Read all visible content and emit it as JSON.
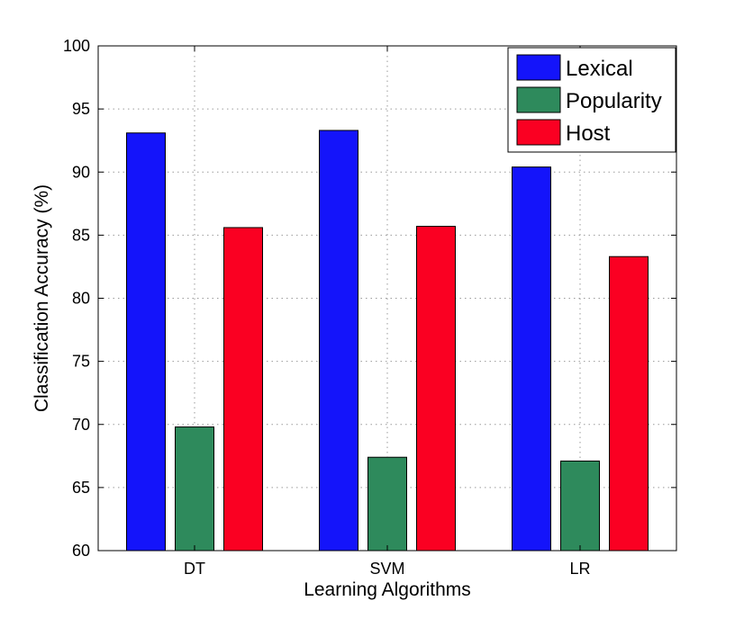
{
  "chart_data": {
    "type": "bar",
    "categories": [
      "DT",
      "SVM",
      "LR"
    ],
    "series": [
      {
        "name": "Lexical",
        "color": "#1414fa",
        "values": [
          93.1,
          93.3,
          90.4
        ]
      },
      {
        "name": "Popularity",
        "color": "#2e8a5c",
        "values": [
          69.8,
          67.4,
          67.1
        ]
      },
      {
        "name": "Host",
        "color": "#fa0022",
        "values": [
          85.6,
          85.7,
          83.3
        ]
      }
    ],
    "xlabel": "Learning Algorithms",
    "ylabel": "Classification Accuracy (%)",
    "ylim": [
      60,
      100
    ],
    "yticks": [
      60,
      65,
      70,
      75,
      80,
      85,
      90,
      95,
      100
    ],
    "grid": true,
    "legend_position": "top-right"
  }
}
